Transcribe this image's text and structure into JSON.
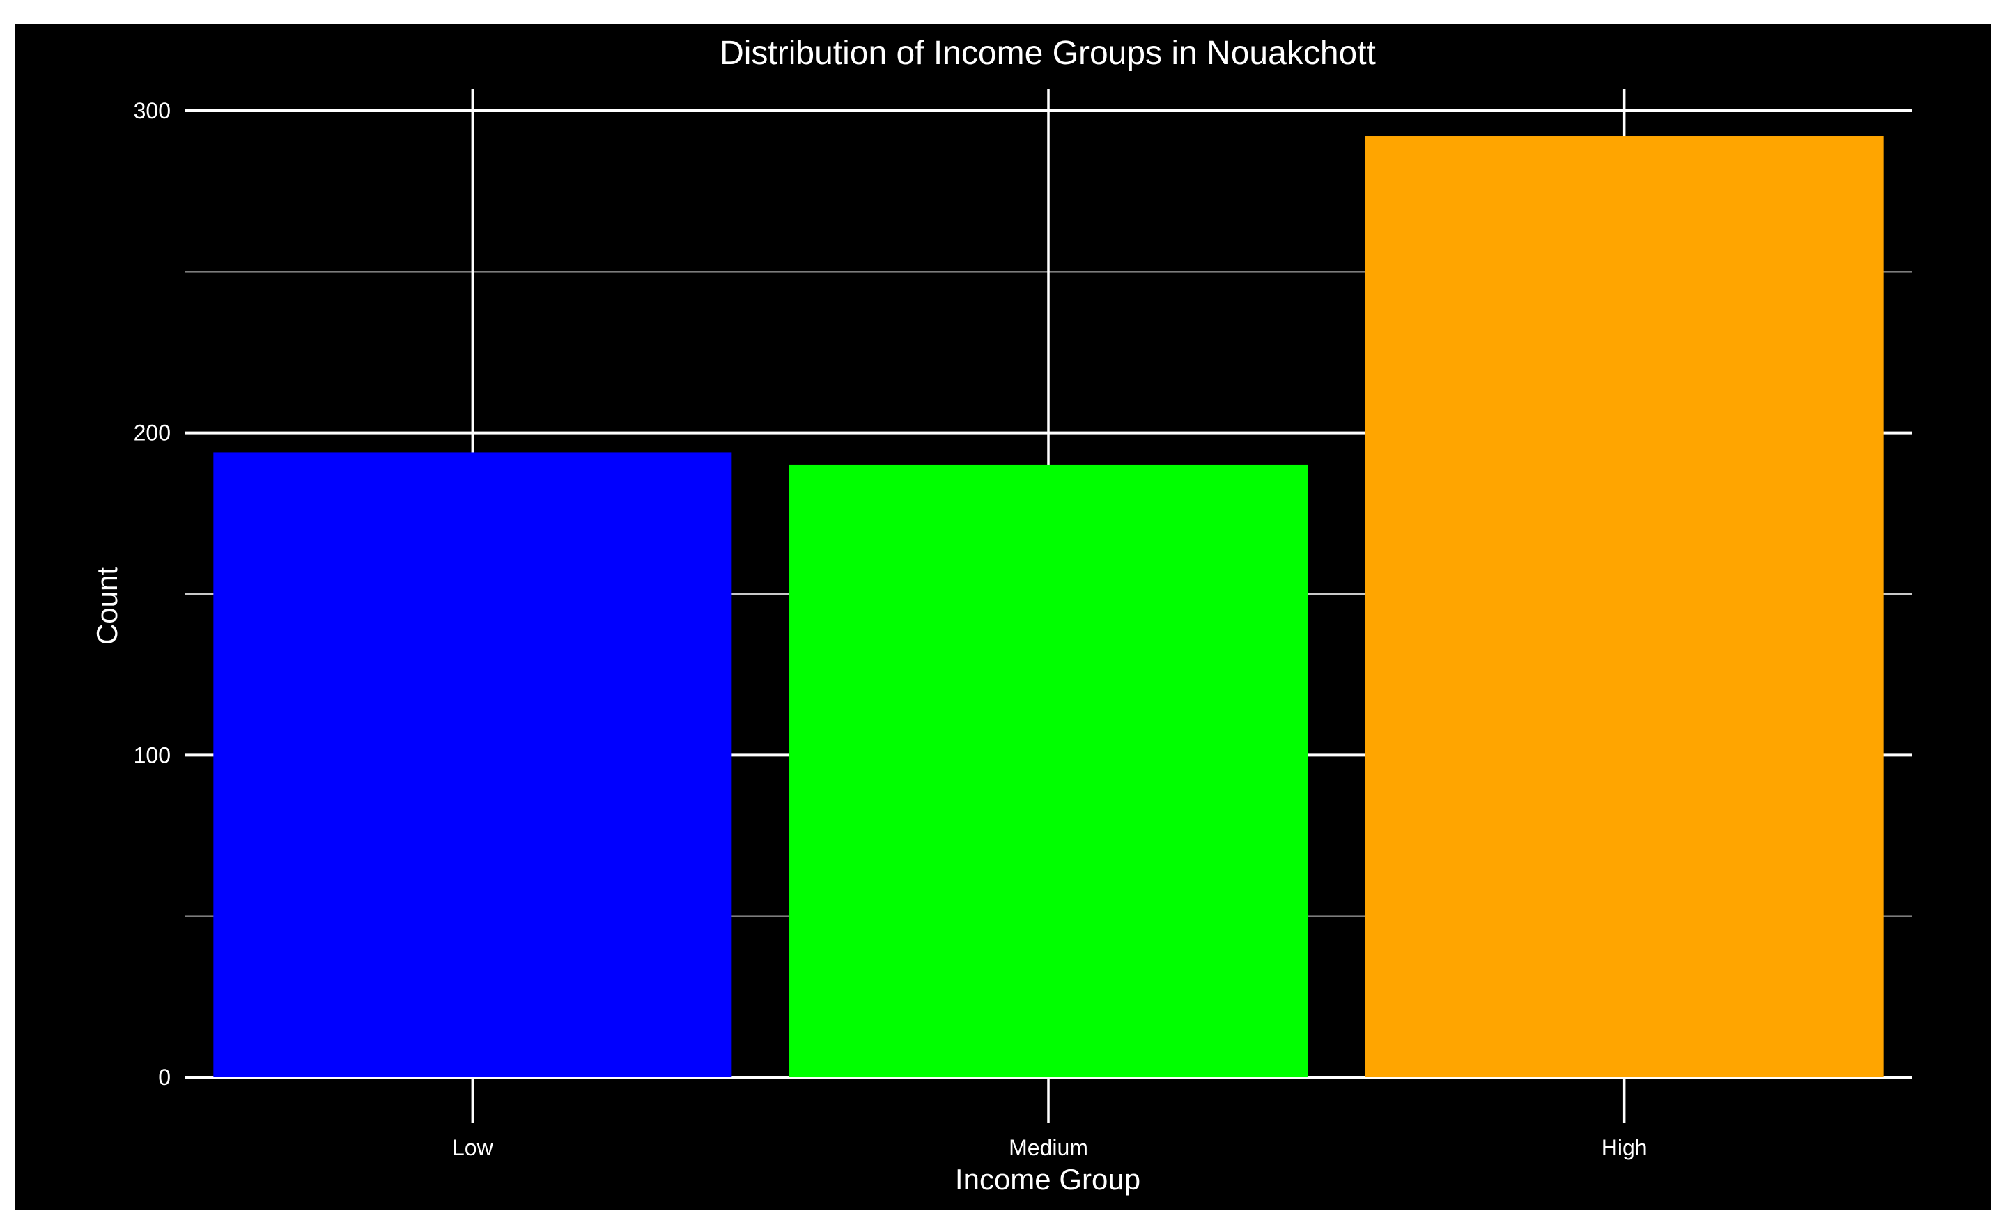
{
  "chart_data": {
    "type": "bar",
    "title": "Distribution of Income Groups in Nouakchott",
    "xlabel": "Income Group",
    "ylabel": "Count",
    "categories": [
      "Low",
      "Medium",
      "High"
    ],
    "values": [
      194,
      190,
      292
    ],
    "bar_colors": [
      "#0000ff",
      "#00ff00",
      "#ffa500"
    ],
    "ylim": [
      0,
      300
    ],
    "yticks": [
      0,
      100,
      200,
      300
    ],
    "ytick_labels": [
      "0",
      "100",
      "200",
      "300"
    ],
    "y_minor_ticks": [
      50,
      150,
      250
    ],
    "grid": true,
    "legend": "none",
    "colors": {
      "panel_background": "#000000",
      "outer_background": "#ffffff",
      "grid_major": "#ffffff",
      "grid_minor": "#c8c8c8",
      "text": "#ffffff"
    }
  }
}
